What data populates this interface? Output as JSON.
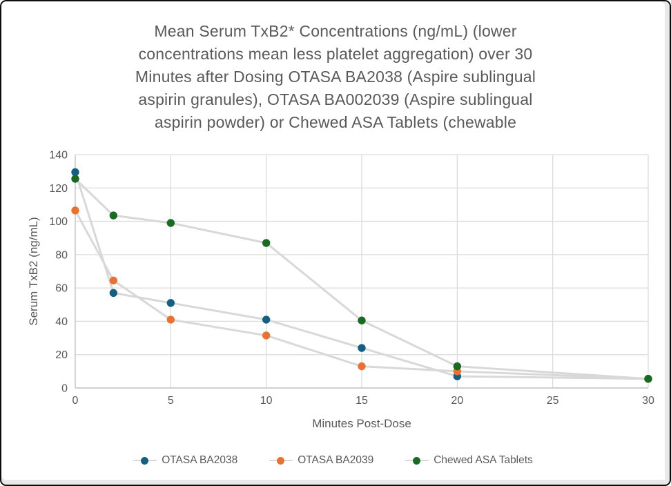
{
  "window": {
    "background": "#ffffff",
    "border_color": "#0d0d0d"
  },
  "chart_data": {
    "type": "line",
    "title": "Mean Serum TxB2* Concentrations (ng/mL) (lower concentrations mean less platelet aggregation) over 30 Minutes after Dosing OTASA BA2038 (Aspire sublingual aspirin granules), OTASA BA002039 (Aspire sublingual aspirin powder) or Chewed ASA Tablets (chewable",
    "title_lines": [
      "Mean Serum TxB2* Concentrations (ng/mL) (lower",
      "concentrations mean less platelet aggregation) over 30",
      "Minutes after Dosing OTASA BA2038 (Aspire sublingual",
      "aspirin granules), OTASA BA002039 (Aspire sublingual",
      "aspirin powder) or Chewed ASA Tablets (chewable"
    ],
    "xlabel": "Minutes Post-Dose",
    "ylabel": "Serum TxB2 (ng/mL)",
    "xlim": [
      0,
      30
    ],
    "ylim": [
      0,
      140
    ],
    "xticks": [
      0,
      5,
      10,
      15,
      20,
      25,
      30
    ],
    "yticks": [
      0,
      20,
      40,
      60,
      80,
      100,
      120,
      140
    ],
    "grid": true,
    "legend_position": "bottom",
    "x": [
      0,
      2,
      5,
      10,
      15,
      20,
      30
    ],
    "series": [
      {
        "name": "OTASA BA2038",
        "color": "#156082",
        "values": [
          129.5,
          57,
          51,
          41,
          24,
          7,
          5.5
        ]
      },
      {
        "name": "OTASA BA2039",
        "color": "#E97132",
        "values": [
          106.5,
          64.5,
          41,
          31.5,
          13,
          10,
          5.5
        ]
      },
      {
        "name": "Chewed ASA Tablets",
        "color": "#196B24",
        "values": [
          125.5,
          103.5,
          99,
          87,
          40.5,
          13,
          5.5
        ]
      }
    ],
    "styles": {
      "connector_line_color": "#d8d8d8",
      "grid_color": "#dcdcdc",
      "axis_color": "#c2c2c2",
      "text_color": "#595959",
      "marker_radius": 5.7
    }
  }
}
